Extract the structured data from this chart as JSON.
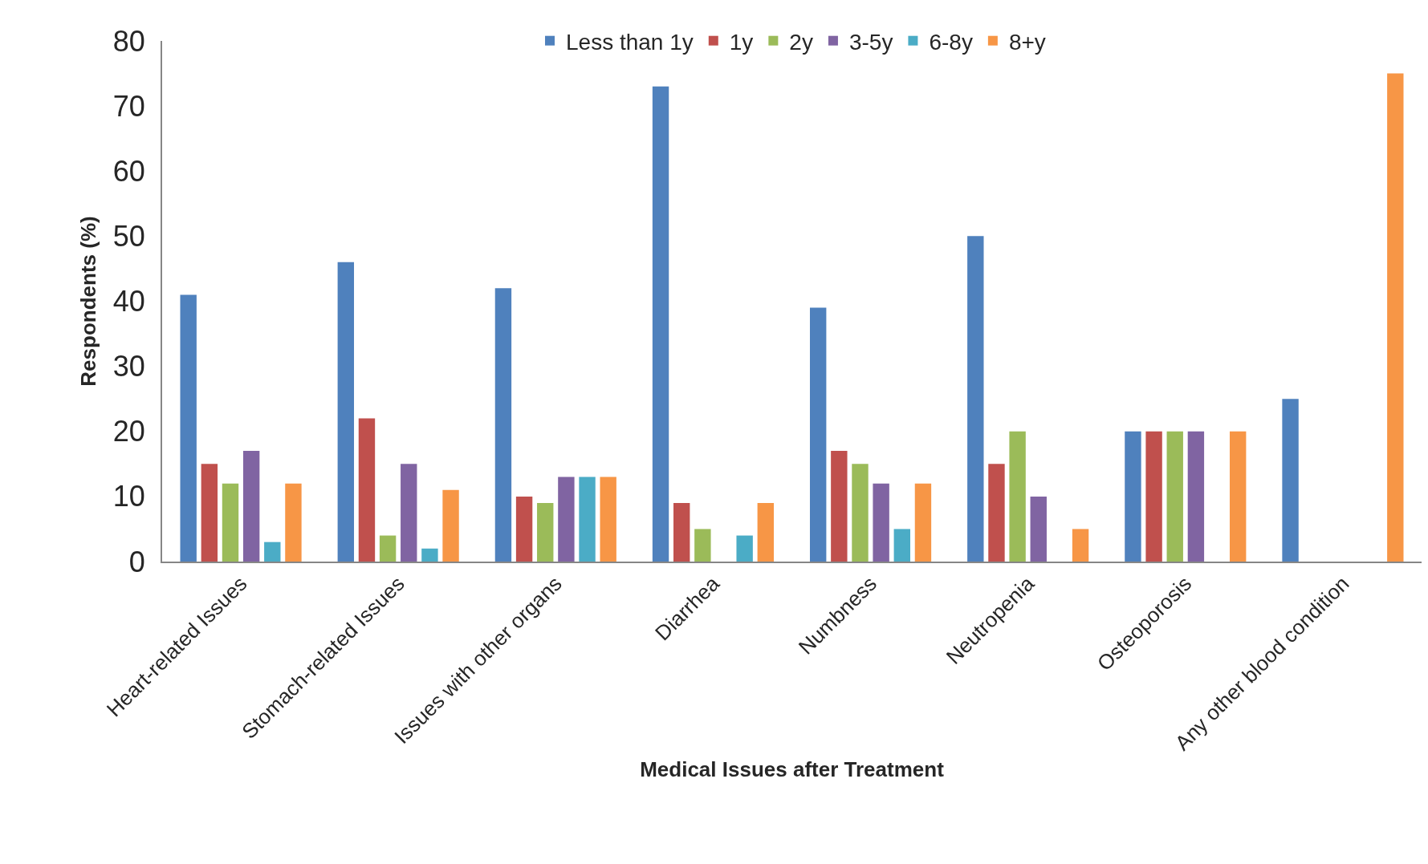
{
  "chart_data": {
    "type": "bar",
    "xlabel": "Medical Issues after Treatment",
    "ylabel": "Respondents (%)",
    "categories": [
      "Heart-related Issues",
      "Stomach-related Issues",
      "Issues with other organs",
      "Diarrhea",
      "Numbness",
      "Neutropenia",
      "Osteoporosis",
      "Any other blood condition"
    ],
    "series": [
      {
        "name": "Less than 1y",
        "color": "#4f81bd",
        "values": [
          41,
          46,
          42,
          73,
          39,
          50,
          20,
          25
        ]
      },
      {
        "name": "1y",
        "color": "#c0504d",
        "values": [
          15,
          22,
          10,
          9,
          17,
          15,
          20,
          0
        ]
      },
      {
        "name": "2y",
        "color": "#9bbb59",
        "values": [
          12,
          4,
          9,
          5,
          15,
          20,
          20,
          0
        ]
      },
      {
        "name": "3-5y",
        "color": "#8064a2",
        "values": [
          17,
          15,
          13,
          0,
          12,
          10,
          20,
          0
        ]
      },
      {
        "name": "6-8y",
        "color": "#4bacc6",
        "values": [
          3,
          2,
          13,
          4,
          5,
          0,
          0,
          0
        ]
      },
      {
        "name": "8+y",
        "color": "#f79646",
        "values": [
          12,
          11,
          13,
          9,
          12,
          5,
          20,
          75
        ]
      }
    ],
    "ylim": [
      0,
      80
    ],
    "yticks": [
      0,
      10,
      20,
      30,
      40,
      50,
      60,
      70,
      80
    ],
    "grid": false,
    "legend": "top"
  }
}
